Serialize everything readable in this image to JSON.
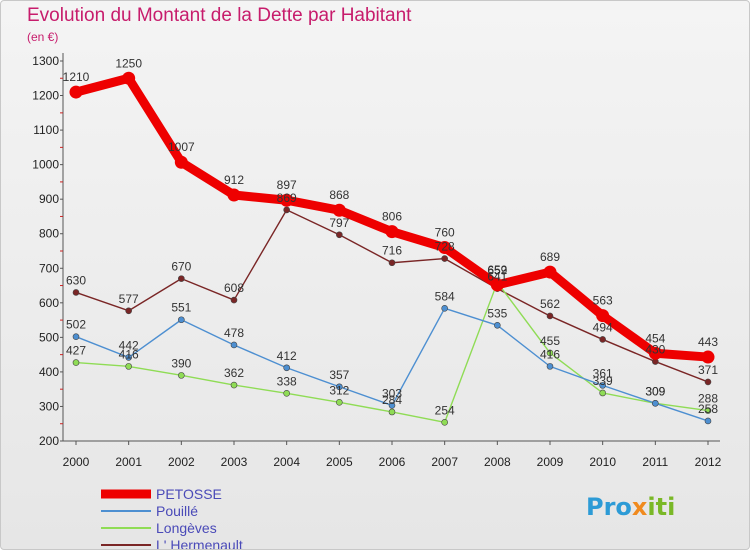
{
  "title": "Evolution du Montant de la Dette par Habitant",
  "unit": "(en €)",
  "brand": {
    "parts": [
      "Pro",
      "x",
      "iti"
    ],
    "colors": [
      "#2d9bd6",
      "#f08a1e",
      "#7ab827"
    ]
  },
  "chart_data": {
    "type": "line",
    "title": "Evolution du Montant de la Dette par Habitant",
    "ylabel": "(en €)",
    "xlabel": "",
    "ylim": [
      200,
      1300
    ],
    "yticks": [
      200,
      300,
      400,
      500,
      600,
      700,
      800,
      900,
      1000,
      1100,
      1200,
      1300
    ],
    "categories": [
      "2000",
      "2001",
      "2002",
      "2003",
      "2004",
      "2005",
      "2006",
      "2007",
      "2008",
      "2009",
      "2010",
      "2011",
      "2012"
    ],
    "legend_position": "bottom-left",
    "grid": false,
    "series": [
      {
        "name": "PETOSSE",
        "color": "#ee0000",
        "values": [
          1210,
          1250,
          1007,
          912,
          897,
          868,
          806,
          760,
          652,
          689,
          563,
          454,
          443
        ],
        "labels": [
          "1210",
          "1250",
          "1007",
          "912",
          "897",
          "868",
          "806",
          "760",
          "652",
          "689",
          "563",
          "454",
          "443"
        ]
      },
      {
        "name": "Pouillé",
        "color": "#4d8fd1",
        "values": [
          502,
          442,
          551,
          478,
          412,
          357,
          303,
          584,
          535,
          416,
          361,
          309,
          258
        ],
        "labels": [
          "502",
          "442",
          "551",
          "478",
          "412",
          "357",
          "303",
          "584",
          "535",
          "416",
          "361",
          "309",
          "258"
        ]
      },
      {
        "name": "Longèves",
        "color": "#8fdc55",
        "values": [
          427,
          416,
          390,
          362,
          338,
          312,
          284,
          254,
          659,
          455,
          339,
          309,
          288
        ],
        "labels": [
          "427",
          "416",
          "390",
          "362",
          "338",
          "312",
          "284",
          "254",
          "659",
          "455",
          "339",
          "309",
          "288"
        ]
      },
      {
        "name": "L' Hermenault",
        "color": "#7a2626",
        "values": [
          630,
          577,
          670,
          608,
          869,
          797,
          716,
          728,
          641,
          562,
          494,
          430,
          371
        ],
        "labels": [
          "630",
          "577",
          "670",
          "608",
          "869",
          "797",
          "716",
          "728",
          "641",
          "562",
          "494",
          "430",
          "371"
        ]
      }
    ]
  }
}
